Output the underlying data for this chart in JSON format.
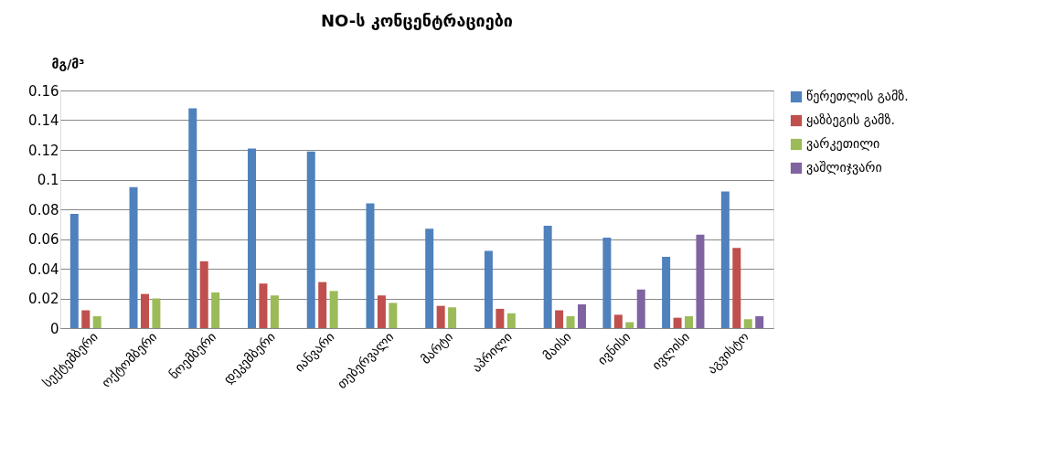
{
  "chart_data": {
    "type": "bar",
    "title": "NO-ს კონცენტრაციები",
    "ylabel": "მგ/მ³",
    "categories": [
      "სექტემბერი",
      "ოქტომბერი",
      "ნოემბერი",
      "დეკემბერი",
      "იანვარი",
      "თებერვალი",
      "მარტი",
      "აპრილი",
      "მაისი",
      "ივნისი",
      "ივლისი",
      "აგვისტო"
    ],
    "series": [
      {
        "name": "წერეთლის გამზ.",
        "color": "#4f81bd",
        "values": [
          0.077,
          0.095,
          0.148,
          0.121,
          0.119,
          0.084,
          0.067,
          0.052,
          0.069,
          0.061,
          0.048,
          0.092
        ]
      },
      {
        "name": "ყაზბეგის გამზ.",
        "color": "#c0504d",
        "values": [
          0.012,
          0.023,
          0.045,
          0.03,
          0.031,
          0.022,
          0.015,
          0.013,
          0.012,
          0.009,
          0.007,
          0.054
        ]
      },
      {
        "name": "ვარკეთილი",
        "color": "#9bbb59",
        "values": [
          0.008,
          0.02,
          0.024,
          0.022,
          0.025,
          0.017,
          0.014,
          0.01,
          0.008,
          0.004,
          0.008,
          0.006
        ]
      },
      {
        "name": "ვაშლიჯვარი",
        "color": "#8064a2",
        "values": [
          null,
          null,
          null,
          null,
          null,
          null,
          null,
          null,
          0.016,
          0.026,
          0.063,
          0.008
        ]
      }
    ],
    "ylim": [
      0,
      0.16
    ],
    "yticks": [
      0,
      0.02,
      0.04,
      0.06,
      0.08,
      0.1,
      0.12,
      0.14,
      0.16
    ],
    "grid": "y",
    "legend": "right"
  }
}
